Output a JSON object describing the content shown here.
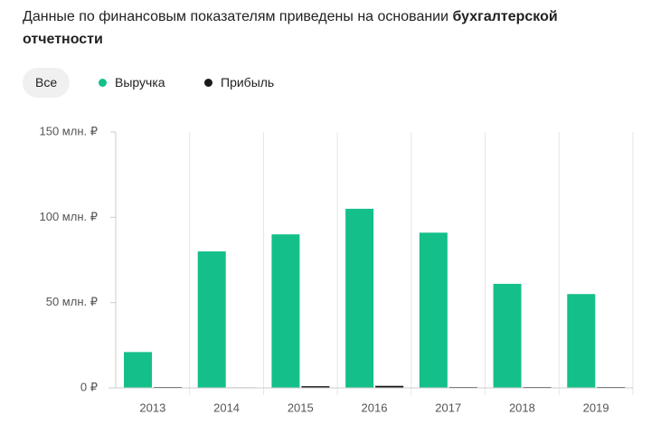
{
  "header": {
    "text": "Данные по финансовым показателям приведены на основании ",
    "bold": "бухгалтерской отчетности"
  },
  "filters": {
    "all": "Все"
  },
  "chart_data": {
    "type": "bar",
    "categories": [
      "2013",
      "2014",
      "2015",
      "2016",
      "2017",
      "2018",
      "2019"
    ],
    "series": [
      {
        "name": "Выручка",
        "color": "#14bf8a",
        "values": [
          21,
          80,
          90,
          105,
          91,
          61,
          55
        ]
      },
      {
        "name": "Прибыль",
        "color": "#1a1a1a",
        "values": [
          0.5,
          0.3,
          1,
          1.2,
          0.5,
          0.5,
          0.5
        ]
      }
    ],
    "ylim": [
      0,
      150
    ],
    "yticks": [
      {
        "value": 0,
        "label": "0 ₽"
      },
      {
        "value": 50,
        "label": "50 млн. ₽"
      },
      {
        "value": 100,
        "label": "100 млн. ₽"
      },
      {
        "value": 150,
        "label": "150 млн. ₽"
      }
    ],
    "grid": true
  }
}
